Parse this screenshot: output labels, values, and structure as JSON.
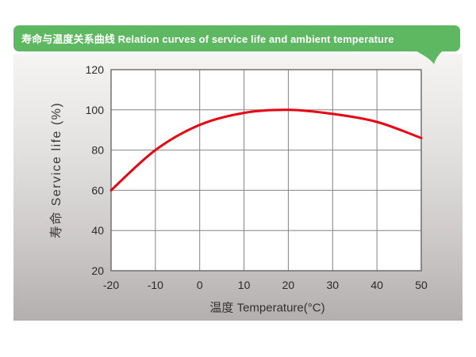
{
  "banner": {
    "title": "寿命与温度关系曲线 Relation curves of service life and ambient temperature",
    "bg_color": "#5eb861",
    "text_color": "#ffffff"
  },
  "chart_data": {
    "type": "line",
    "title": "寿命与温度关系曲线 Relation curves of service life and ambient temperature",
    "xlabel": "温度 Temperature(°C)",
    "ylabel": "寿命 Service life (%)",
    "x": [
      -20,
      -10,
      0,
      10,
      20,
      30,
      40,
      50
    ],
    "series": [
      {
        "name": "service-life",
        "color": "#e60012",
        "values": [
          60,
          80,
          92.5,
          98.5,
          100,
          98,
          94,
          86
        ]
      }
    ],
    "xlim": [
      -20,
      50
    ],
    "ylim": [
      20,
      120
    ],
    "x_ticks": [
      "-20",
      "-10",
      "0",
      "10",
      "20",
      "30",
      "40",
      "50"
    ],
    "y_ticks": [
      "20",
      "40",
      "60",
      "80",
      "100",
      "120"
    ],
    "grid": true,
    "legend": false
  },
  "colors": {
    "plot_bg": "#ffffff",
    "grid_line": "#848484",
    "plot_border": "#686868",
    "tick_text": "#2b2a29",
    "curve": "#e60012",
    "banner_green": "#5eb861"
  }
}
